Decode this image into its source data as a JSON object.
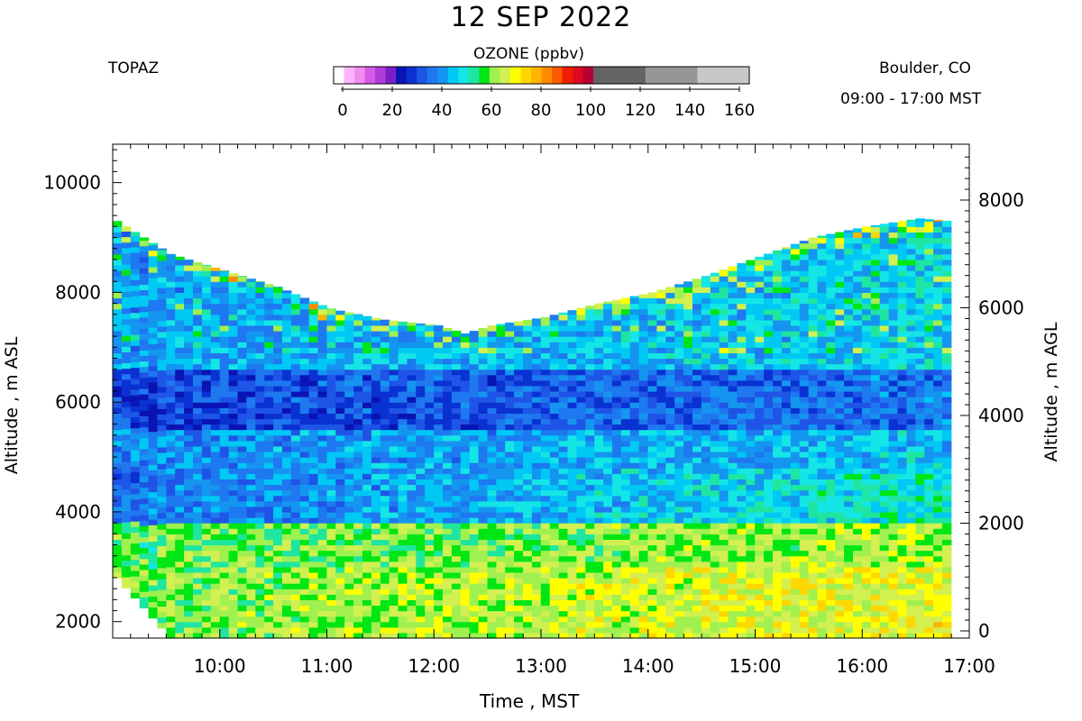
{
  "chart_data": {
    "type": "heatmap",
    "title": "12 SEP 2022",
    "instrument": "TOPAZ",
    "location": "Boulder, CO",
    "time_range": "09:00 - 17:00 MST",
    "xlabel": "Time , MST",
    "ylabel_left": "Altitude , m ASL",
    "ylabel_right": "Altitude , m AGL",
    "x_ticks": [
      "10:00",
      "11:00",
      "12:00",
      "13:00",
      "14:00",
      "15:00",
      "16:00",
      "17:00"
    ],
    "xlim": [
      9.0,
      17.0
    ],
    "ylim_left": [
      1700,
      10700
    ],
    "yticks_left": [
      2000,
      4000,
      6000,
      8000,
      10000
    ],
    "yticks_left_labels": [
      "2000",
      "4000",
      "6000",
      "8000",
      "10000"
    ],
    "yticks_right": [
      0,
      2000,
      4000,
      6000,
      8000
    ],
    "yticks_right_labels": [
      "0",
      "2000",
      "4000",
      "6000",
      "8000"
    ],
    "surface_altitude_asl": 1700,
    "colorbar": {
      "title": "OZONE (ppbv)",
      "ticks": [
        0,
        20,
        40,
        60,
        80,
        100,
        120,
        140,
        160
      ],
      "tick_labels": [
        "0",
        "20",
        "40",
        "60",
        "80",
        "100",
        "120",
        "140",
        "160"
      ],
      "bins": [
        {
          "from": 0,
          "to": 4,
          "color": "#ffffff"
        },
        {
          "from": 4,
          "to": 8,
          "color": "#ffb3ff"
        },
        {
          "from": 8,
          "to": 12,
          "color": "#f08cf0"
        },
        {
          "from": 12,
          "to": 16,
          "color": "#d45ae6"
        },
        {
          "from": 16,
          "to": 20,
          "color": "#b03cd8"
        },
        {
          "from": 20,
          "to": 24,
          "color": "#7a1fc8"
        },
        {
          "from": 24,
          "to": 28,
          "color": "#0a14b4"
        },
        {
          "from": 28,
          "to": 32,
          "color": "#0a32d2"
        },
        {
          "from": 32,
          "to": 36,
          "color": "#1e55e6"
        },
        {
          "from": 36,
          "to": 40,
          "color": "#1e78f0"
        },
        {
          "from": 40,
          "to": 44,
          "color": "#1496f0"
        },
        {
          "from": 44,
          "to": 48,
          "color": "#00c8f5"
        },
        {
          "from": 48,
          "to": 52,
          "color": "#14e6e6"
        },
        {
          "from": 52,
          "to": 56,
          "color": "#1ee6a0"
        },
        {
          "from": 56,
          "to": 60,
          "color": "#00e614"
        },
        {
          "from": 60,
          "to": 64,
          "color": "#a0f050"
        },
        {
          "from": 64,
          "to": 68,
          "color": "#d2f050"
        },
        {
          "from": 68,
          "to": 72,
          "color": "#ffff00"
        },
        {
          "from": 72,
          "to": 76,
          "color": "#ffd700"
        },
        {
          "from": 76,
          "to": 80,
          "color": "#ffb400"
        },
        {
          "from": 80,
          "to": 84,
          "color": "#ff8c00"
        },
        {
          "from": 84,
          "to": 88,
          "color": "#ff5a00"
        },
        {
          "from": 88,
          "to": 92,
          "color": "#f01e00"
        },
        {
          "from": 92,
          "to": 96,
          "color": "#dc0a1e"
        },
        {
          "from": 96,
          "to": 100,
          "color": "#b40032"
        },
        {
          "from": 100,
          "to": 120,
          "color": "#646464"
        },
        {
          "from": 120,
          "to": 140,
          "color": "#969696"
        },
        {
          "from": 140,
          "to": 160,
          "color": "#c8c8c8"
        }
      ]
    },
    "profiles": [
      {
        "time": 9.0,
        "top": 9300,
        "bottom": 2800
      },
      {
        "time": 9.5,
        "top": 8700,
        "bottom": 1700
      },
      {
        "time": 10.0,
        "top": 8400,
        "bottom": 1700
      },
      {
        "time": 10.5,
        "top": 8100,
        "bottom": 1700
      },
      {
        "time": 11.0,
        "top": 7700,
        "bottom": 1700
      },
      {
        "time": 11.5,
        "top": 7500,
        "bottom": 1700
      },
      {
        "time": 12.0,
        "top": 7400,
        "bottom": 1700
      },
      {
        "time": 12.25,
        "top": 7250,
        "bottom": 1700
      },
      {
        "time": 12.5,
        "top": 7400,
        "bottom": 1700
      },
      {
        "time": 13.0,
        "top": 7550,
        "bottom": 1700
      },
      {
        "time": 13.5,
        "top": 7800,
        "bottom": 1700
      },
      {
        "time": 14.0,
        "top": 8000,
        "bottom": 1700
      },
      {
        "time": 14.5,
        "top": 8300,
        "bottom": 1700
      },
      {
        "time": 15.0,
        "top": 8650,
        "bottom": 1700
      },
      {
        "time": 15.5,
        "top": 9000,
        "bottom": 1700
      },
      {
        "time": 16.0,
        "top": 9200,
        "bottom": 1700
      },
      {
        "time": 16.5,
        "top": 9350,
        "bottom": 1700
      },
      {
        "time": 16.75,
        "top": 9300,
        "bottom": 1700
      }
    ],
    "ozone_layers": [
      {
        "alt_from": 1700,
        "alt_to": 3000,
        "ozone_morning": 60,
        "ozone_afternoon": 70
      },
      {
        "alt_from": 3000,
        "alt_to": 3800,
        "ozone_morning": 58,
        "ozone_afternoon": 64
      },
      {
        "alt_from": 3800,
        "alt_to": 4800,
        "ozone_morning": 38,
        "ozone_afternoon": 52
      },
      {
        "alt_from": 4800,
        "alt_to": 5500,
        "ozone_morning": 40,
        "ozone_afternoon": 46
      },
      {
        "alt_from": 5500,
        "alt_to": 6600,
        "ozone_morning": 32,
        "ozone_afternoon": 38
      },
      {
        "alt_from": 6600,
        "alt_to": 9400,
        "ozone_morning": 42,
        "ozone_afternoon": 48
      }
    ]
  }
}
